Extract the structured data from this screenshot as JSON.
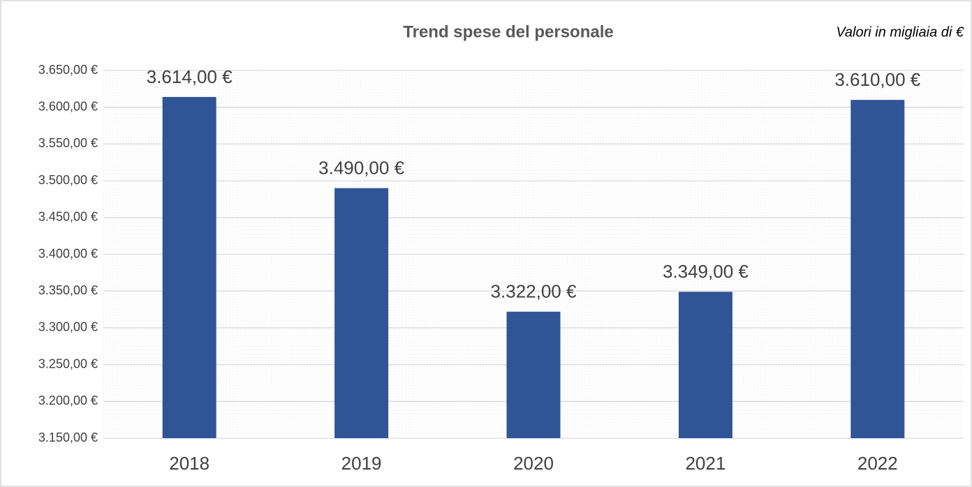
{
  "chart_data": {
    "type": "bar",
    "title": "Trend spese del personale",
    "annotation": "Valori in migliaia di €",
    "categories": [
      "2018",
      "2019",
      "2020",
      "2021",
      "2022"
    ],
    "values": [
      3614,
      3490,
      3322,
      3349,
      3610
    ],
    "value_labels": [
      "3.614,00 €",
      "3.490,00 €",
      "3.322,00 €",
      "3.349,00 €",
      "3.610,00 €"
    ],
    "color": "#2f5597",
    "ylim": [
      3150,
      3650
    ],
    "yticks": [
      {
        "value": 3150,
        "label": "3.150,00 €"
      },
      {
        "value": 3200,
        "label": "3.200,00 €"
      },
      {
        "value": 3250,
        "label": "3.250,00 €"
      },
      {
        "value": 3300,
        "label": "3.300,00 €"
      },
      {
        "value": 3350,
        "label": "3.350,00 €"
      },
      {
        "value": 3400,
        "label": "3.400,00 €"
      },
      {
        "value": 3450,
        "label": "3.450,00 €"
      },
      {
        "value": 3500,
        "label": "3.500,00 €"
      },
      {
        "value": 3550,
        "label": "3.550,00 €"
      },
      {
        "value": 3600,
        "label": "3.600,00 €"
      },
      {
        "value": 3650,
        "label": "3.650,00 €"
      }
    ],
    "grid": true
  }
}
